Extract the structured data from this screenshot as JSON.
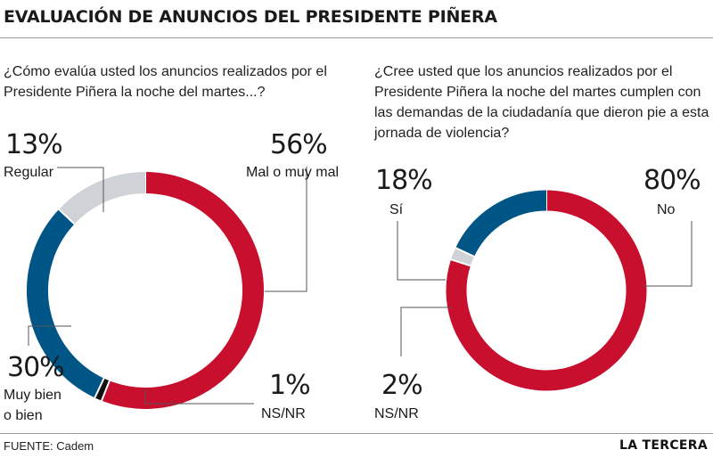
{
  "header": {
    "title": "EVALUACIÓN DE ANUNCIOS DEL PRESIDENTE PIÑERA"
  },
  "footer": {
    "source": "FUENTE: Cadem",
    "brand": "LA TERCERA"
  },
  "colors": {
    "red": "#c8102e",
    "blue": "#005587",
    "gray": "#cfd2d6",
    "black": "#111111"
  },
  "chart_data": [
    {
      "type": "pie",
      "question": "¿Cómo evalúa usted los anuncios realizados por el Presidente Piñera la noche del martes...?",
      "slices": [
        {
          "label": "Mal o muy mal",
          "value": 56,
          "display": "56%",
          "color": "#c8102e"
        },
        {
          "label": "NS/NR",
          "value": 1,
          "display": "1%",
          "color": "#111111"
        },
        {
          "label": "Muy bien o bien",
          "value": 30,
          "display": "30%",
          "color": "#005587"
        },
        {
          "label": "Regular",
          "value": 13,
          "display": "13%",
          "color": "#cfd2d6"
        }
      ]
    },
    {
      "type": "pie",
      "question": "¿Cree usted que los anuncios realizados por el Presidente Piñera la noche del martes cumplen con las demandas de la ciudadanía que dieron pie a esta jornada de violencia?",
      "slices": [
        {
          "label": "No",
          "value": 80,
          "display": "80%",
          "color": "#c8102e"
        },
        {
          "label": "NS/NR",
          "value": 2,
          "display": "2%",
          "color": "#cfd2d6"
        },
        {
          "label": "Sí",
          "value": 18,
          "display": "18%",
          "color": "#005587"
        }
      ]
    }
  ]
}
